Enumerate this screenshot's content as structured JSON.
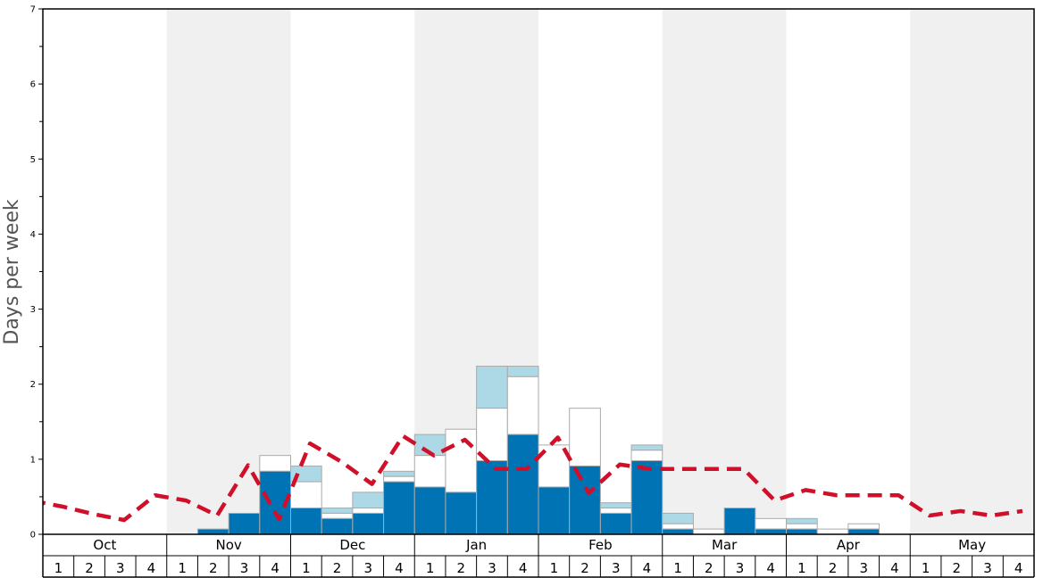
{
  "chart_data": {
    "type": "bar",
    "ylabel": "Days per week",
    "ylim": [
      0,
      7
    ],
    "y_ticks": [
      "0",
      "1",
      "2",
      "3",
      "4",
      "5",
      "6",
      "7"
    ],
    "months": [
      "Oct",
      "Nov",
      "Dec",
      "Jan",
      "Feb",
      "Mar",
      "Apr",
      "May"
    ],
    "week_labels": [
      "1",
      "2",
      "3",
      "4"
    ],
    "shaded_months": [
      "Nov",
      "Jan",
      "Mar",
      "May"
    ],
    "colors": {
      "dark_blue": "#0073b5",
      "light_blue": "#add8e6",
      "white": "#ffffff",
      "bar_border": "#aaaaaa",
      "average_line": "#d0102a",
      "shade": "#f0f0f0"
    },
    "bars": [
      {
        "month": "Oct",
        "week": 1,
        "dark": 0,
        "white": 0,
        "light": 0
      },
      {
        "month": "Oct",
        "week": 2,
        "dark": 0,
        "white": 0,
        "light": 0
      },
      {
        "month": "Oct",
        "week": 3,
        "dark": 0,
        "white": 0,
        "light": 0
      },
      {
        "month": "Oct",
        "week": 4,
        "dark": 0,
        "white": 0,
        "light": 0
      },
      {
        "month": "Nov",
        "week": 1,
        "dark": 0,
        "white": 0,
        "light": 0
      },
      {
        "month": "Nov",
        "week": 2,
        "dark": 0.07,
        "white": 0,
        "light": 0
      },
      {
        "month": "Nov",
        "week": 3,
        "dark": 0.28,
        "white": 0,
        "light": 0
      },
      {
        "month": "Nov",
        "week": 4,
        "dark": 0.84,
        "white": 0.21,
        "light": 0
      },
      {
        "month": "Dec",
        "week": 1,
        "dark": 0.35,
        "white": 0.35,
        "light": 0.21
      },
      {
        "month": "Dec",
        "week": 2,
        "dark": 0.21,
        "white": 0.07,
        "light": 0.07
      },
      {
        "month": "Dec",
        "week": 3,
        "dark": 0.28,
        "white": 0.07,
        "light": 0.21
      },
      {
        "month": "Dec",
        "week": 4,
        "dark": 0.7,
        "white": 0.07,
        "light": 0.07
      },
      {
        "month": "Jan",
        "week": 1,
        "dark": 0.63,
        "white": 0.42,
        "light": 0.28
      },
      {
        "month": "Jan",
        "week": 2,
        "dark": 0.56,
        "white": 0.84,
        "light": 0
      },
      {
        "month": "Jan",
        "week": 3,
        "dark": 0.98,
        "white": 0.7,
        "light": 0.56
      },
      {
        "month": "Jan",
        "week": 4,
        "dark": 1.33,
        "white": 0.77,
        "light": 0.14
      },
      {
        "month": "Feb",
        "week": 1,
        "dark": 0.63,
        "white": 0.56,
        "light": 0
      },
      {
        "month": "Feb",
        "week": 2,
        "dark": 0.91,
        "white": 0.77,
        "light": 0
      },
      {
        "month": "Feb",
        "week": 3,
        "dark": 0.28,
        "white": 0.07,
        "light": 0.07
      },
      {
        "month": "Feb",
        "week": 4,
        "dark": 0.98,
        "white": 0.14,
        "light": 0.07
      },
      {
        "month": "Mar",
        "week": 1,
        "dark": 0.07,
        "white": 0.07,
        "light": 0.14
      },
      {
        "month": "Mar",
        "week": 2,
        "dark": 0,
        "white": 0.07,
        "light": 0
      },
      {
        "month": "Mar",
        "week": 3,
        "dark": 0.35,
        "white": 0,
        "light": 0
      },
      {
        "month": "Mar",
        "week": 4,
        "dark": 0.07,
        "white": 0.14,
        "light": 0
      },
      {
        "month": "Apr",
        "week": 1,
        "dark": 0.07,
        "white": 0.07,
        "light": 0.07
      },
      {
        "month": "Apr",
        "week": 2,
        "dark": 0,
        "white": 0.07,
        "light": 0
      },
      {
        "month": "Apr",
        "week": 3,
        "dark": 0.07,
        "white": 0.07,
        "light": 0
      },
      {
        "month": "Apr",
        "week": 4,
        "dark": 0,
        "white": 0,
        "light": 0
      },
      {
        "month": "May",
        "week": 1,
        "dark": 0,
        "white": 0,
        "light": 0
      },
      {
        "month": "May",
        "week": 2,
        "dark": 0,
        "white": 0,
        "light": 0
      },
      {
        "month": "May",
        "week": 3,
        "dark": 0,
        "white": 0,
        "light": 0
      },
      {
        "month": "May",
        "week": 4,
        "dark": 0,
        "white": 0,
        "light": 0
      }
    ],
    "average_line": [
      0.45,
      0.37,
      0.27,
      0.19,
      0.52,
      0.45,
      0.25,
      0.92,
      0.2,
      1.21,
      0.97,
      0.67,
      1.31,
      1.05,
      1.26,
      0.87,
      0.87,
      1.29,
      0.55,
      0.93,
      0.87,
      0.87,
      0.87,
      0.87,
      0.45,
      0.59,
      0.52,
      0.52,
      0.52,
      0.25,
      0.31,
      0.25,
      0.31
    ]
  }
}
